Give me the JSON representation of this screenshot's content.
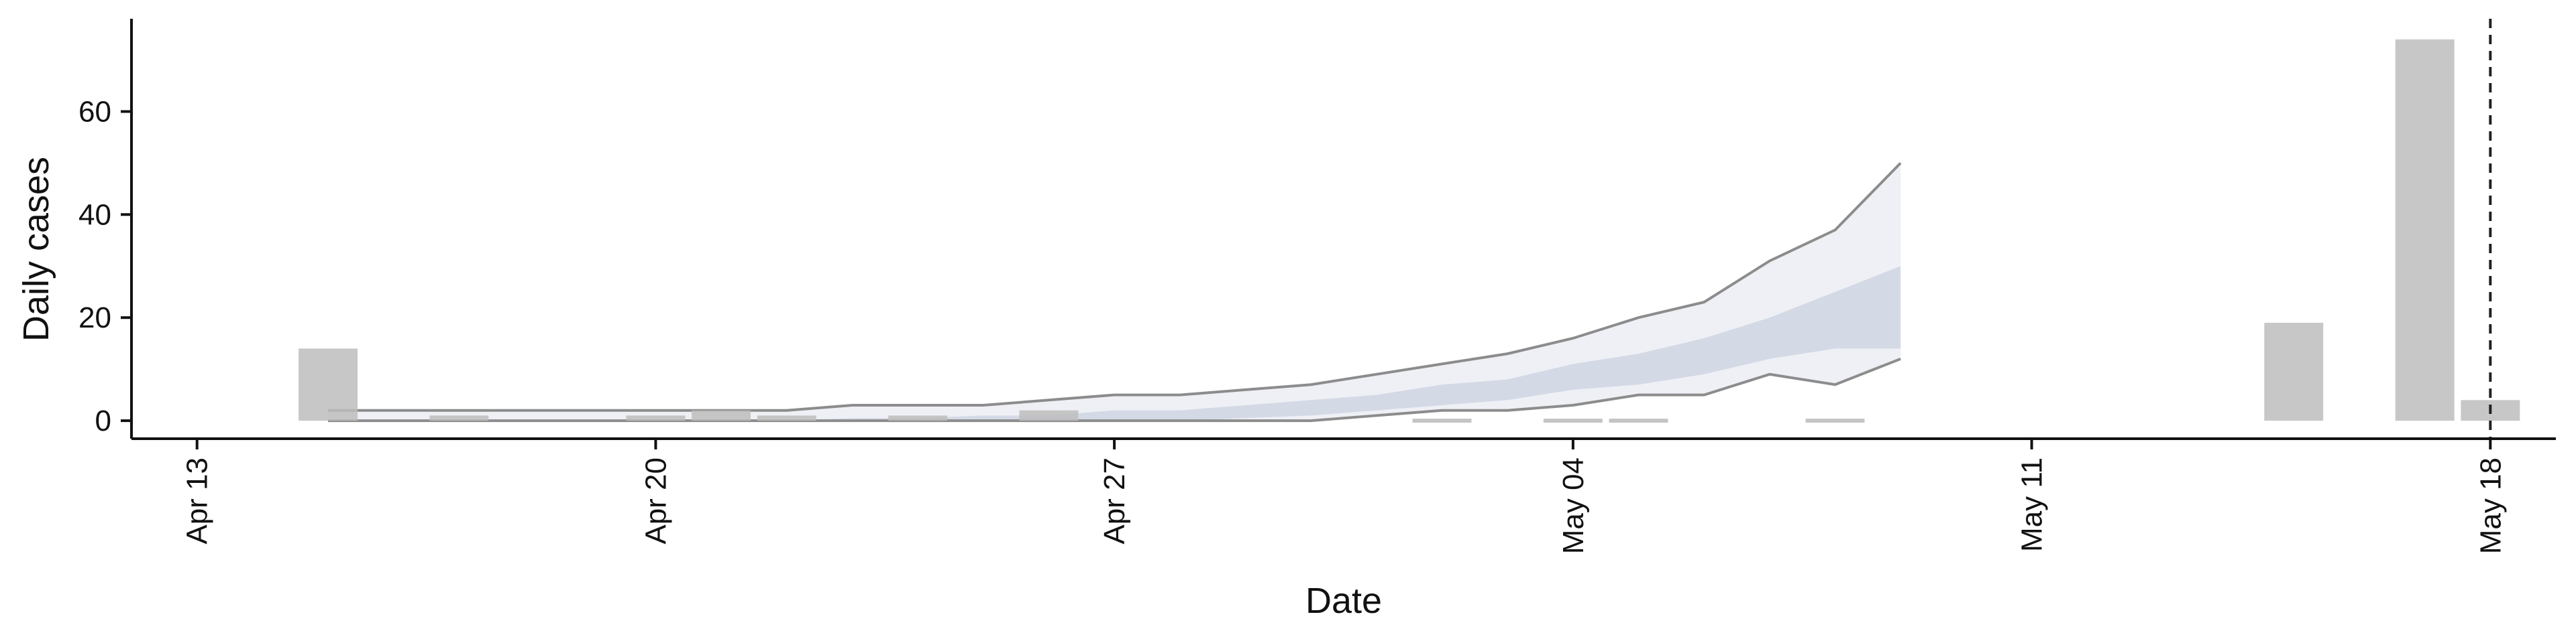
{
  "chart_data": {
    "type": "bar",
    "xlabel": "Date",
    "ylabel": "Daily cases",
    "x_axis": {
      "type": "date",
      "range": [
        "2020-04-12",
        "2020-05-19"
      ],
      "ticks": [
        {
          "date": "2020-04-13",
          "label": "Apr 13"
        },
        {
          "date": "2020-04-20",
          "label": "Apr 20"
        },
        {
          "date": "2020-04-27",
          "label": "Apr 27"
        },
        {
          "date": "2020-05-04",
          "label": "May 04"
        },
        {
          "date": "2020-05-11",
          "label": "May 11"
        },
        {
          "date": "2020-05-18",
          "label": "May 18"
        }
      ]
    },
    "y_axis": {
      "range": [
        -3.5,
        78
      ],
      "ticks": [
        0,
        20,
        40,
        60
      ]
    },
    "grid": false,
    "series": [
      {
        "kind": "bar",
        "color": "#bdbdbd",
        "points": [
          {
            "date": "2020-04-15",
            "value": 14
          },
          {
            "date": "2020-04-17",
            "value": 1
          },
          {
            "date": "2020-04-20",
            "value": 1
          },
          {
            "date": "2020-04-21",
            "value": 2
          },
          {
            "date": "2020-04-22",
            "value": 1
          },
          {
            "date": "2020-04-24",
            "value": 1
          },
          {
            "date": "2020-04-26",
            "value": 2
          },
          {
            "date": "2020-05-15",
            "value": 19
          },
          {
            "date": "2020-05-17",
            "value": 74
          },
          {
            "date": "2020-05-18",
            "value": 4
          }
        ]
      },
      {
        "kind": "zero-marker",
        "color": "#c4c4c4",
        "points": [
          {
            "date": "2020-05-02",
            "value": 0
          },
          {
            "date": "2020-05-04",
            "value": 0
          },
          {
            "date": "2020-05-05",
            "value": 0
          },
          {
            "date": "2020-05-08",
            "value": 0
          }
        ]
      },
      {
        "kind": "forecast-band",
        "outer_fill": "#eef0f5",
        "inner_fill": "#d4d9e6",
        "outer_stroke": "#8c8c8c",
        "points": [
          {
            "date": "2020-04-15",
            "lo90": 0,
            "lo50": 0,
            "hi50": 0,
            "hi90": 2
          },
          {
            "date": "2020-04-16",
            "lo90": 0,
            "lo50": 0,
            "hi50": 0,
            "hi90": 2
          },
          {
            "date": "2020-04-17",
            "lo90": 0,
            "lo50": 0,
            "hi50": 0,
            "hi90": 2
          },
          {
            "date": "2020-04-18",
            "lo90": 0,
            "lo50": 0,
            "hi50": 0,
            "hi90": 2
          },
          {
            "date": "2020-04-19",
            "lo90": 0,
            "lo50": 0,
            "hi50": 0,
            "hi90": 2
          },
          {
            "date": "2020-04-20",
            "lo90": 0,
            "lo50": 0,
            "hi50": 0,
            "hi90": 2
          },
          {
            "date": "2020-04-21",
            "lo90": 0,
            "lo50": 0,
            "hi50": 0,
            "hi90": 2
          },
          {
            "date": "2020-04-22",
            "lo90": 0,
            "lo50": 0,
            "hi50": 0,
            "hi90": 2
          },
          {
            "date": "2020-04-23",
            "lo90": 0,
            "lo50": 0,
            "hi50": 0.5,
            "hi90": 3
          },
          {
            "date": "2020-04-24",
            "lo90": 0,
            "lo50": 0,
            "hi50": 0.5,
            "hi90": 3
          },
          {
            "date": "2020-04-25",
            "lo90": 0,
            "lo50": 0,
            "hi50": 1,
            "hi90": 3
          },
          {
            "date": "2020-04-26",
            "lo90": 0,
            "lo50": 0,
            "hi50": 1,
            "hi90": 4
          },
          {
            "date": "2020-04-27",
            "lo90": 0,
            "lo50": 0,
            "hi50": 2,
            "hi90": 5
          },
          {
            "date": "2020-04-28",
            "lo90": 0,
            "lo50": 0,
            "hi50": 2,
            "hi90": 5
          },
          {
            "date": "2020-04-29",
            "lo90": 0,
            "lo50": 0.5,
            "hi50": 3,
            "hi90": 6
          },
          {
            "date": "2020-04-30",
            "lo90": 0,
            "lo50": 1,
            "hi50": 4,
            "hi90": 7
          },
          {
            "date": "2020-05-01",
            "lo90": 1,
            "lo50": 2,
            "hi50": 5,
            "hi90": 9
          },
          {
            "date": "2020-05-02",
            "lo90": 2,
            "lo50": 3,
            "hi50": 7,
            "hi90": 11
          },
          {
            "date": "2020-05-03",
            "lo90": 2,
            "lo50": 4,
            "hi50": 8,
            "hi90": 13
          },
          {
            "date": "2020-05-04",
            "lo90": 3,
            "lo50": 6,
            "hi50": 11,
            "hi90": 16
          },
          {
            "date": "2020-05-05",
            "lo90": 5,
            "lo50": 7,
            "hi50": 13,
            "hi90": 20
          },
          {
            "date": "2020-05-06",
            "lo90": 5,
            "lo50": 9,
            "hi50": 16,
            "hi90": 23
          },
          {
            "date": "2020-05-07",
            "lo90": 9,
            "lo50": 12,
            "hi50": 20,
            "hi90": 31
          },
          {
            "date": "2020-05-08",
            "lo90": 7,
            "lo50": 14,
            "hi50": 25,
            "hi90": 37
          },
          {
            "date": "2020-05-09",
            "lo90": 12,
            "lo50": 14,
            "hi50": 30,
            "hi90": 50
          }
        ]
      }
    ],
    "reference_line": {
      "date": "2020-05-18",
      "style": "dashed",
      "color": "#222222"
    }
  }
}
